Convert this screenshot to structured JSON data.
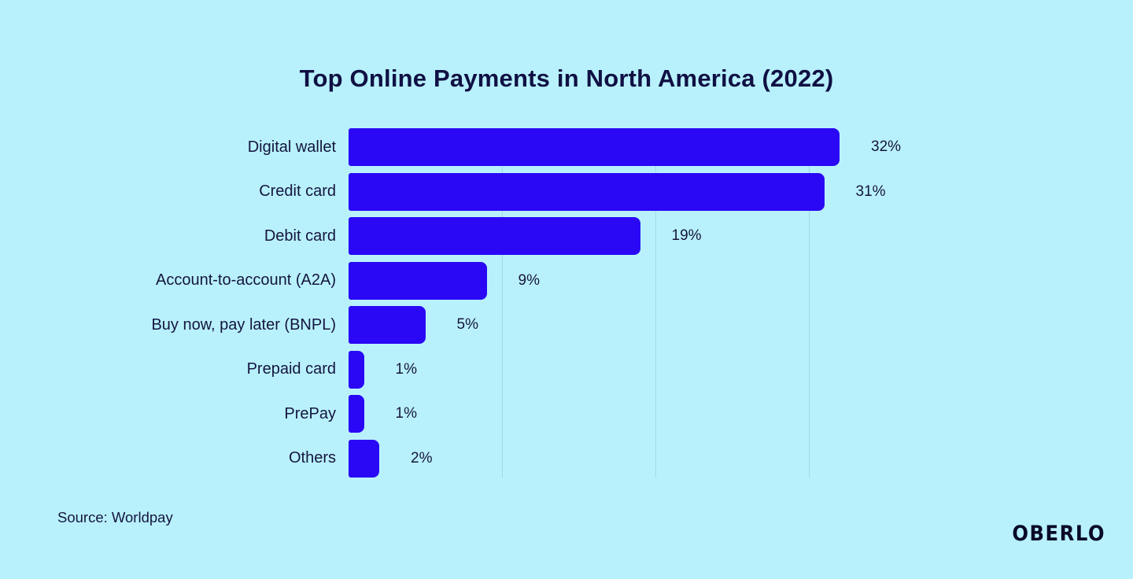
{
  "title": "Top Online Payments in North America (2022)",
  "source": "Source: Worldpay",
  "brand": "OBERLO",
  "colors": {
    "background": "#B8F1FC",
    "bar": "#2A07F5",
    "text": "#15153F",
    "gridline": "#A3D8E5"
  },
  "chart_data": {
    "type": "bar",
    "orientation": "horizontal",
    "title": "Top Online Payments in North America (2022)",
    "xlabel": "",
    "ylabel": "",
    "categories": [
      "Digital wallet",
      "Credit card",
      "Debit card",
      "Account-to-account (A2A)",
      "Buy now, pay later (BNPL)",
      "Prepaid card",
      "PrePay",
      "Others"
    ],
    "values": [
      32,
      31,
      19,
      9,
      5,
      1,
      1,
      2
    ],
    "value_labels": [
      "32%",
      "31%",
      "19%",
      "9%",
      "5%",
      "1%",
      "1%",
      "2%"
    ],
    "xlim": [
      0,
      32
    ],
    "gridlines_percent": [
      10,
      20,
      30
    ],
    "grid": "vertical-only",
    "legend": false
  }
}
